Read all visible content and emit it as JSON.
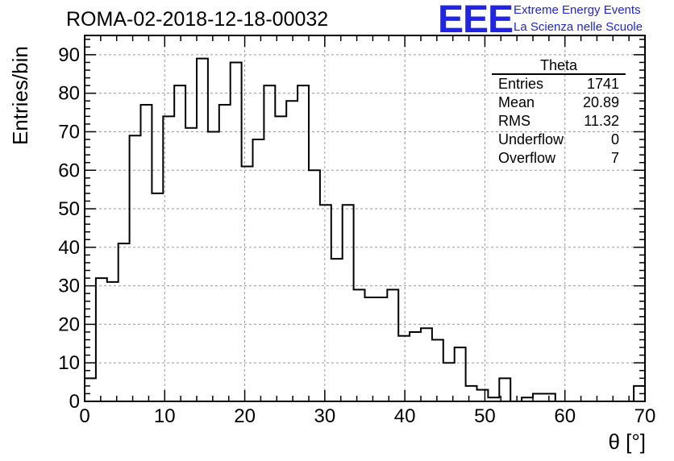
{
  "title": "ROMA-02-2018-12-18-00032",
  "logo": {
    "mark": "EEE",
    "line1": "Extreme Energy Events",
    "line2": "La Scienza nelle Scuole",
    "color": "#1f24e6"
  },
  "stats": {
    "title": "Theta",
    "rows": [
      {
        "label": "Entries",
        "value": "1741"
      },
      {
        "label": "Mean",
        "value": "20.89"
      },
      {
        "label": "RMS",
        "value": "11.32"
      },
      {
        "label": "Underflow",
        "value": "0"
      },
      {
        "label": "Overflow",
        "value": "7"
      }
    ]
  },
  "chart_data": {
    "type": "histogram",
    "xlabel": "θ [°]",
    "ylabel": "Entries/bin",
    "xlim": [
      0,
      70
    ],
    "ylim": [
      0,
      95
    ],
    "bin_width": 1.4,
    "xticks": [
      0,
      10,
      20,
      30,
      40,
      50,
      60,
      70
    ],
    "yticks": [
      0,
      10,
      20,
      30,
      40,
      50,
      60,
      70,
      80,
      90
    ],
    "grid": true,
    "values": [
      6,
      32,
      31,
      41,
      69,
      77,
      54,
      74,
      82,
      71,
      89,
      70,
      77,
      88,
      61,
      68,
      82,
      74,
      78,
      82,
      60,
      51,
      37,
      51,
      29,
      27,
      27,
      29,
      17,
      18,
      19,
      16,
      10,
      14,
      4,
      3,
      1,
      6,
      0,
      1,
      2,
      2,
      0,
      0,
      0,
      0,
      0,
      0,
      0,
      4
    ]
  }
}
